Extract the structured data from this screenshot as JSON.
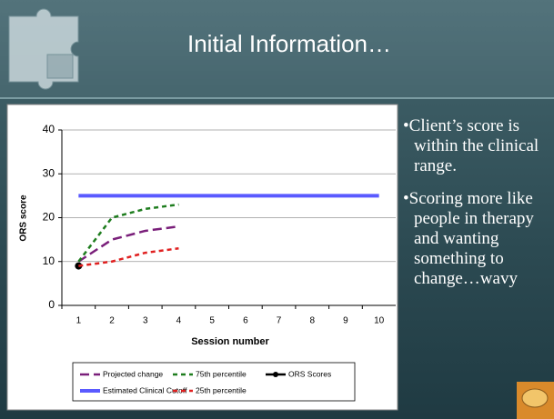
{
  "slide": {
    "title": "Initial Information…",
    "bullets": [
      "•Client’s score is within the clinical range.",
      "•Scoring more like people in therapy and wanting something to change…wavy"
    ]
  },
  "chart_data": {
    "type": "line",
    "x_label": "Session number",
    "y_label": "ORS score",
    "categories": [
      "1",
      "2",
      "3",
      "4",
      "5",
      "6",
      "7",
      "8",
      "9",
      "10"
    ],
    "ylim": [
      0,
      40
    ],
    "yticks": [
      0,
      10,
      20,
      30,
      40
    ],
    "grid": true,
    "series": [
      {
        "name": "Projected change",
        "color": "#7a1f7a",
        "style": "dashed",
        "values": [
          10,
          15,
          17,
          18,
          null,
          null,
          null,
          null,
          null,
          null
        ]
      },
      {
        "name": "75th percentile",
        "color": "#1e7d1e",
        "style": "dotted",
        "values": [
          10,
          20,
          22,
          23,
          null,
          null,
          null,
          null,
          null,
          null
        ]
      },
      {
        "name": "ORS Scores",
        "color": "#000000",
        "style": "solid-marker",
        "values": [
          9,
          null,
          null,
          null,
          null,
          null,
          null,
          null,
          null,
          null
        ]
      },
      {
        "name": "Estimated Clinical Cutoff",
        "color": "#5a5aff",
        "style": "solid",
        "values": [
          25,
          25,
          25,
          25,
          25,
          25,
          25,
          25,
          25,
          25
        ]
      },
      {
        "name": "25th percentile",
        "color": "#e02020",
        "style": "dotted",
        "values": [
          9,
          10,
          12,
          13,
          null,
          null,
          null,
          null,
          null,
          null
        ]
      }
    ]
  }
}
